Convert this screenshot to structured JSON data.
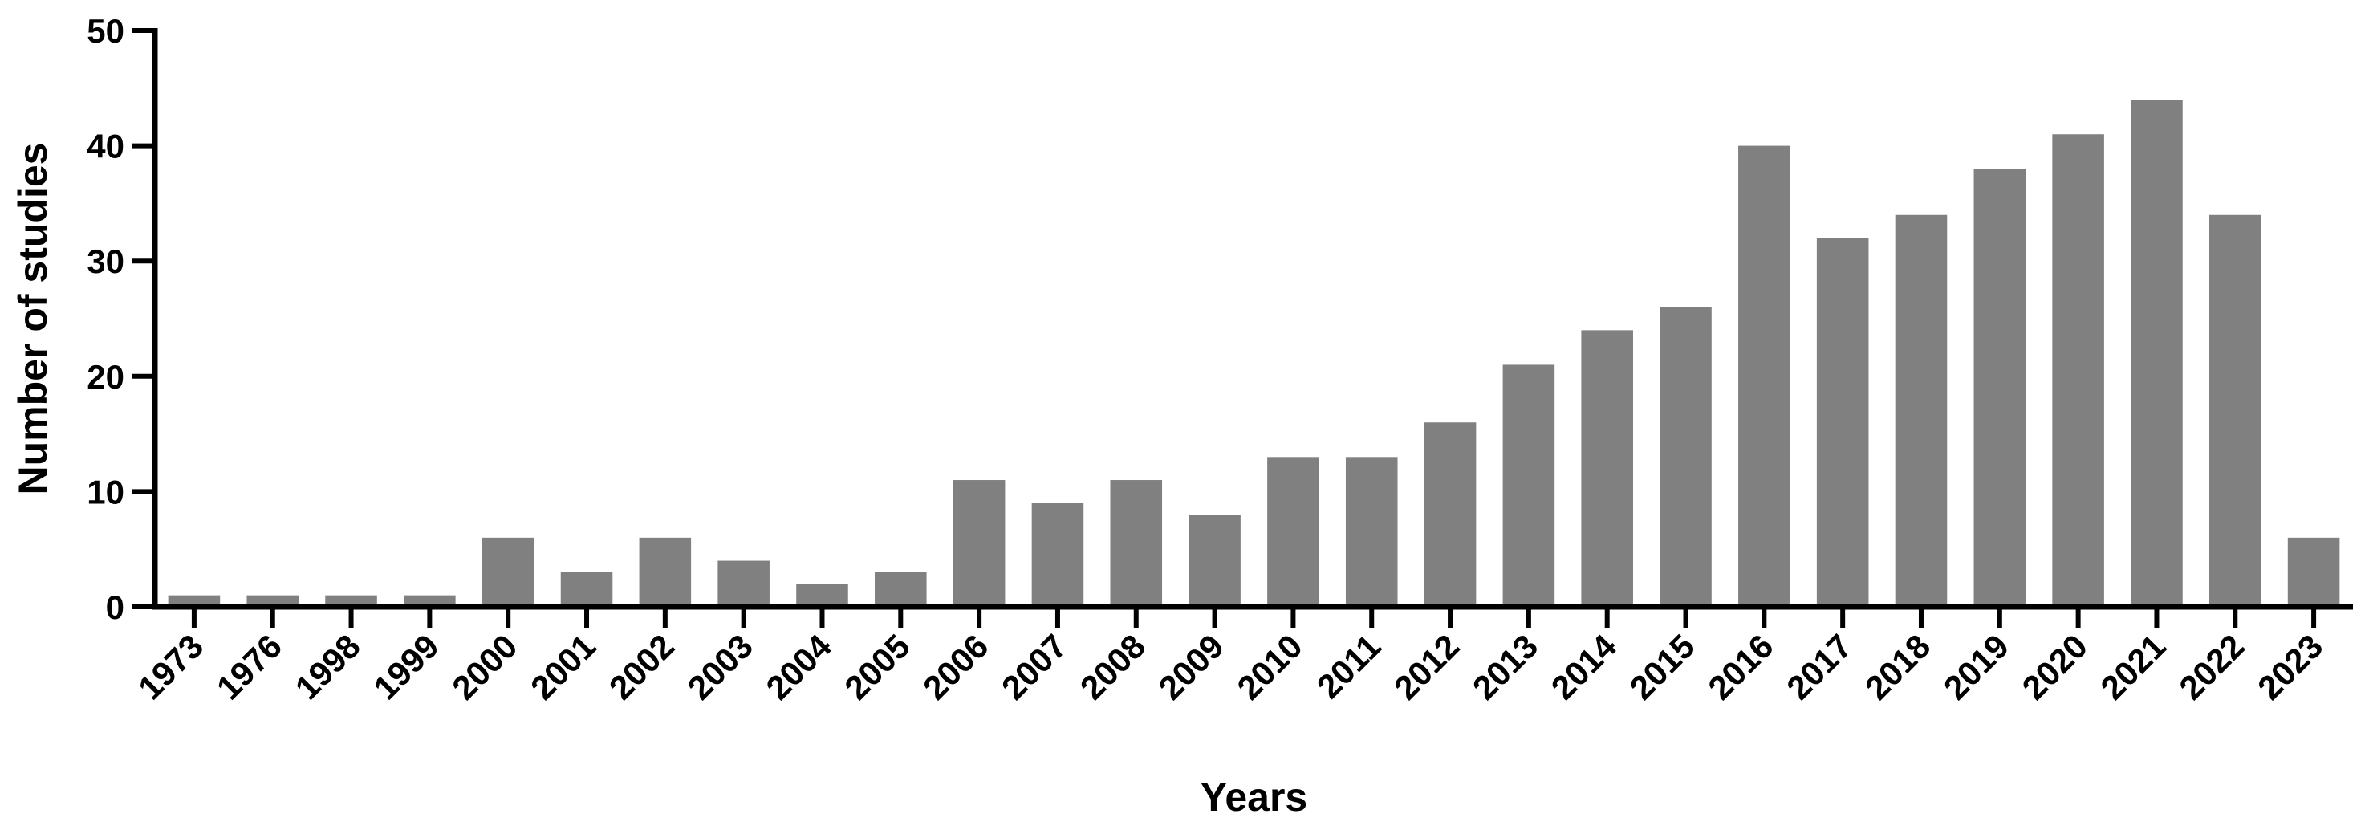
{
  "chart_data": {
    "type": "bar",
    "title": "",
    "xlabel": "Years",
    "ylabel": "Number of studies",
    "ylim": [
      0,
      50
    ],
    "yticks": [
      0,
      10,
      20,
      30,
      40,
      50
    ],
    "grid": false,
    "bar_color": "#808080",
    "categories": [
      "1973",
      "1976",
      "1998",
      "1999",
      "2000",
      "2001",
      "2002",
      "2003",
      "2004",
      "2005",
      "2006",
      "2007",
      "2008",
      "2009",
      "2010",
      "2011",
      "2012",
      "2013",
      "2014",
      "2015",
      "2016",
      "2017",
      "2018",
      "2019",
      "2020",
      "2021",
      "2022",
      "2023"
    ],
    "values": [
      1,
      1,
      1,
      1,
      6,
      3,
      6,
      4,
      2,
      3,
      11,
      9,
      11,
      8,
      13,
      13,
      16,
      21,
      24,
      26,
      40,
      32,
      34,
      38,
      41,
      44,
      34,
      6
    ]
  }
}
